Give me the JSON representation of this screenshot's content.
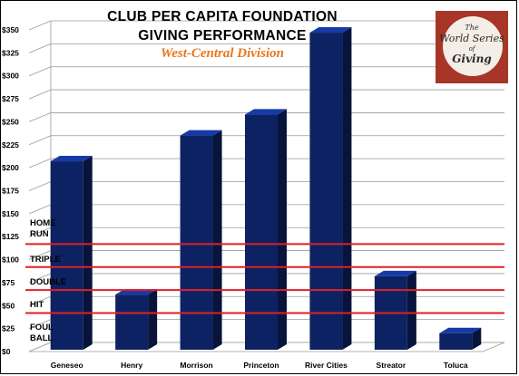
{
  "chart_data": {
    "type": "bar",
    "title_line1": "CLUB PER CAPITA FOUNDATION",
    "title_line2": "GIVING PERFORMANCE",
    "subtitle": "West-Central Division",
    "categories": [
      "Geneseo",
      "Henry",
      "Morrison",
      "Princeton",
      "River Cities",
      "Streator",
      "Toluca"
    ],
    "values": [
      207,
      62,
      235,
      258,
      347,
      82,
      20
    ],
    "ylim": [
      0,
      350
    ],
    "y_ticks": [
      "$0",
      "$25",
      "$50",
      "$75",
      "$100",
      "$125",
      "$150",
      "$175",
      "$200",
      "$225",
      "$250",
      "$275",
      "$300",
      "$325",
      "$350"
    ],
    "grid": true,
    "bar_color": "#0d2263",
    "threshold_color": "#e21f26",
    "thresholds": [
      {
        "label": "HOME RUN",
        "value": 113
      },
      {
        "label": "TRIPLE",
        "value": 88
      },
      {
        "label": "DOUBLE",
        "value": 63
      },
      {
        "label": "HIT",
        "value": 38
      },
      {
        "label": "FOUL BALL",
        "value": 0
      }
    ]
  },
  "logo": {
    "line1": "The",
    "line2": "World Series",
    "line3": "of",
    "line4": "Giving",
    "background": "#a73628"
  }
}
